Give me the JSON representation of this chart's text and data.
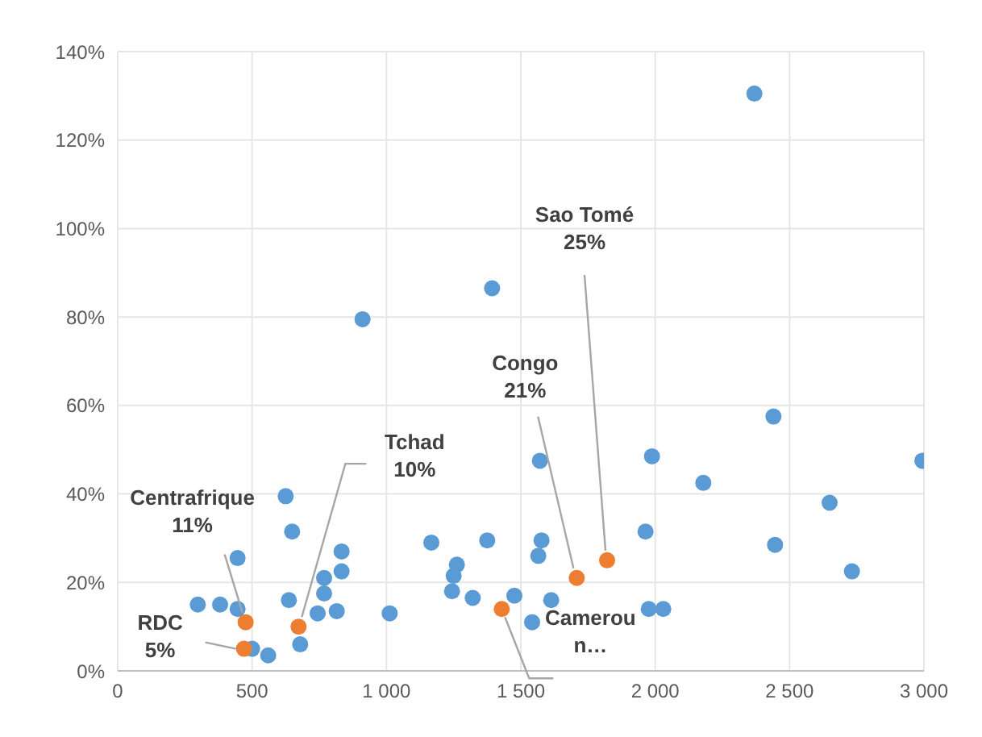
{
  "chart_data": {
    "type": "scatter",
    "xlim": [
      0,
      3000
    ],
    "ylim": [
      0,
      140
    ],
    "xticks": [
      0,
      500,
      {
        "value": 1000,
        "label": "1 000"
      },
      {
        "value": 1500,
        "label": "1 500"
      },
      {
        "value": 2000,
        "label": "2 000"
      },
      {
        "value": 2500,
        "label": "2 500"
      },
      {
        "value": 3000,
        "label": "3 000"
      }
    ],
    "yticks": [
      {
        "value": 0,
        "label": "0%"
      },
      {
        "value": 20,
        "label": "20%"
      },
      {
        "value": 40,
        "label": "40%"
      },
      {
        "value": 60,
        "label": "60%"
      },
      {
        "value": 80,
        "label": "80%"
      },
      {
        "value": 100,
        "label": "100%"
      },
      {
        "value": 120,
        "label": "120%"
      },
      {
        "value": 140,
        "label": "140%"
      }
    ],
    "grid": true,
    "legend": false,
    "marker": "circle",
    "series": [
      {
        "color": "#5b9bd5",
        "x": [
          298,
          381,
          446,
          446,
          500,
          560,
          625,
          649,
          637,
          679,
          744,
          768,
          768,
          815,
          833,
          833,
          1012,
          911,
          1167,
          1375,
          1262,
          1250,
          1244,
          1321,
          1571,
          1988,
          2179,
          1476,
          1542,
          1613,
          1577,
          1565,
          1964,
          1976,
          2030,
          2440,
          2994,
          2649,
          2446,
          2732,
          2369,
          1393
        ],
        "values": [
          15,
          15,
          25.5,
          14,
          5,
          3.5,
          39.5,
          31.5,
          16,
          6,
          13,
          21,
          17.5,
          13.5,
          27,
          22.5,
          13,
          79.5,
          29,
          29.5,
          24,
          21.5,
          18,
          16.5,
          47.5,
          48.5,
          42.5,
          17,
          11,
          16,
          29.5,
          26,
          31.5,
          14,
          14,
          57.5,
          47.5,
          38,
          28.5,
          22.5,
          130.5,
          86.5
        ]
      },
      {
        "color": "#ed7d31",
        "x": [
          470,
          476,
          673,
          1429,
          1708,
          1821
        ],
        "values": [
          5,
          11,
          10,
          14,
          21,
          25
        ]
      }
    ],
    "annotations": [
      {
        "text": "RDC\n5%",
        "x": 470,
        "y": 5
      },
      {
        "text": "Centrafrique\n11%",
        "x": 476,
        "y": 11
      },
      {
        "text": "Tchad\n10%",
        "x": 673,
        "y": 10
      },
      {
        "text": "Camerou\nn…",
        "x": 1429,
        "y": 14
      },
      {
        "text": "Congo\n21%",
        "x": 1708,
        "y": 21
      },
      {
        "text": "Sao Tomé\n25%",
        "x": 1821,
        "y": 25
      }
    ]
  }
}
